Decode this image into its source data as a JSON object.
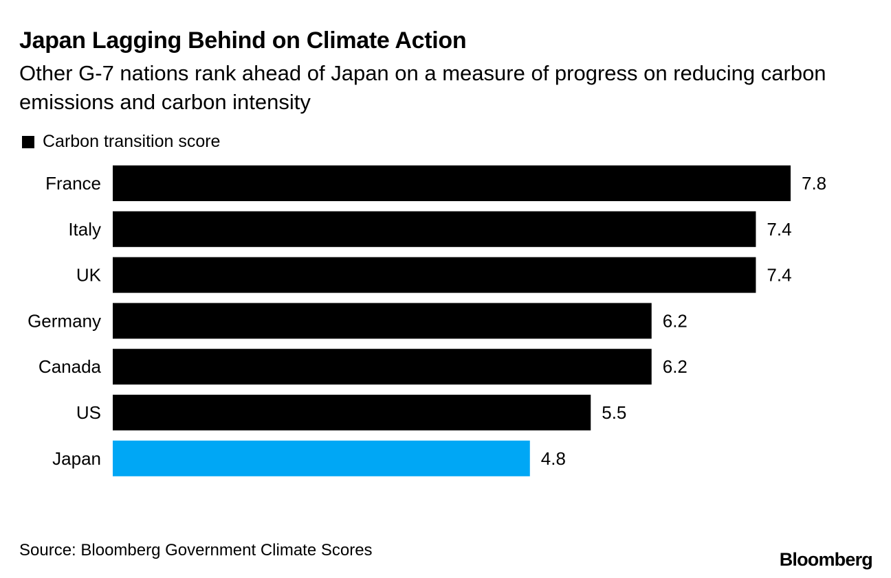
{
  "chart_data": {
    "type": "bar",
    "orientation": "horizontal",
    "title": "Japan Lagging Behind on Climate Action",
    "subtitle": "Other G-7 nations rank ahead of Japan on a measure of progress on reducing carbon emissions and carbon intensity",
    "categories": [
      "France",
      "Italy",
      "UK",
      "Germany",
      "Canada",
      "US",
      "Japan"
    ],
    "series": [
      {
        "name": "Carbon transition score",
        "color": "#000000",
        "values": [
          7.8,
          7.4,
          7.4,
          6.2,
          6.2,
          5.5,
          4.8
        ],
        "labels": [
          "7.8",
          "7.4",
          "7.4",
          "6.2",
          "6.2",
          "5.5",
          "4.8"
        ]
      }
    ],
    "highlight": {
      "category": "Japan",
      "color": "#00a7f5"
    },
    "xlim": [
      0,
      7.8
    ],
    "grid": false,
    "legend": "top-left"
  },
  "footer": {
    "source": "Source: Bloomberg Government Climate Scores",
    "brand": "Bloomberg"
  }
}
